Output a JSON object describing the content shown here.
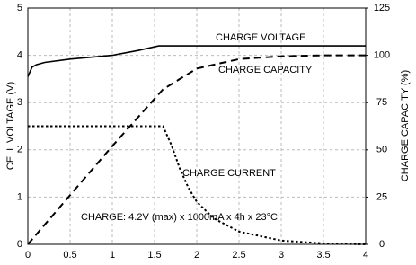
{
  "chart_data": {
    "type": "line",
    "ylabel": "CELL VOLTAGE (V)",
    "y2label": "CHARGE CAPACITY (%)",
    "xlim": [
      0,
      4
    ],
    "xticks": [
      0,
      0.5,
      1,
      1.5,
      2,
      2.5,
      3,
      3.5,
      4
    ],
    "ylim": [
      0,
      5
    ],
    "yticks": [
      0,
      1,
      2,
      3,
      4,
      5
    ],
    "y2lim": [
      0,
      125
    ],
    "y2ticks": [
      0,
      25,
      50,
      75,
      100,
      125
    ],
    "grid": true,
    "series": [
      {
        "name": "CHARGE VOLTAGE",
        "color": "#000000",
        "style": "solid",
        "x": [
          0,
          0.05,
          0.1,
          0.2,
          0.5,
          1.0,
          1.3,
          1.55,
          2,
          3,
          4
        ],
        "values": [
          3.55,
          3.75,
          3.8,
          3.85,
          3.92,
          4.0,
          4.1,
          4.2,
          4.2,
          4.2,
          4.2
        ]
      },
      {
        "name": "CHARGE CAPACITY",
        "color": "#000000",
        "style": "dashed",
        "axis": "y2",
        "x": [
          0,
          0.5,
          1,
          1.6,
          2,
          2.5,
          3,
          3.5,
          4
        ],
        "values": [
          0,
          26,
          52,
          82,
          93,
          98,
          99.5,
          100,
          100
        ]
      },
      {
        "name": "CHARGE CURRENT",
        "color": "#000000",
        "style": "dotted",
        "x": [
          0,
          1.6,
          1.7,
          1.8,
          1.9,
          2.0,
          2.2,
          2.5,
          3.0,
          3.5,
          4
        ],
        "values": [
          2.5,
          2.5,
          2.1,
          1.6,
          1.2,
          0.9,
          0.55,
          0.27,
          0.08,
          0.02,
          0
        ]
      }
    ],
    "annotation": "CHARGE: 4.2V (max) x 1000mA x 4h x 23°C"
  }
}
